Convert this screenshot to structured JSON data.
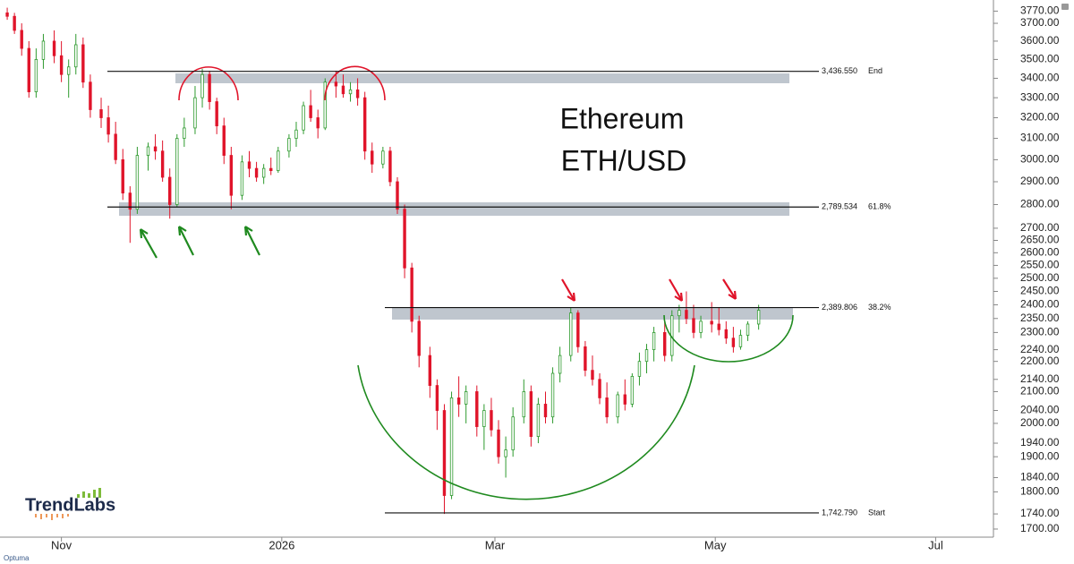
{
  "chart_data": {
    "type": "candlestick",
    "title": "Ethereum",
    "subtitle": "ETH/USD",
    "brand": "TrendLabs",
    "footer": "Optuma",
    "log_scale": true,
    "up_color": "#2e9a2e",
    "down_color": "#e0142a",
    "xlim": [
      -17,
      258
    ],
    "xticks": [
      {
        "value": 0,
        "label": "Nov"
      },
      {
        "value": 61,
        "label": "2026"
      },
      {
        "value": 120,
        "label": "Mar"
      },
      {
        "value": 181,
        "label": "May"
      },
      {
        "value": 242,
        "label": "Jul"
      }
    ],
    "ylim": [
      1679,
      3793
    ],
    "yticks": [
      {
        "value": 3770,
        "label": "3770.00"
      },
      {
        "value": 3700,
        "label": "3700.00"
      },
      {
        "value": 3600,
        "label": "3600.00"
      },
      {
        "value": 3500,
        "label": "3500.00"
      },
      {
        "value": 3400,
        "label": "3400.00"
      },
      {
        "value": 3300,
        "label": "3300.00"
      },
      {
        "value": 3200,
        "label": "3200.00"
      },
      {
        "value": 3100,
        "label": "3100.00"
      },
      {
        "value": 3000,
        "label": "3000.00"
      },
      {
        "value": 2900,
        "label": "2900.00"
      },
      {
        "value": 2800,
        "label": "2800.00"
      },
      {
        "value": 2700,
        "label": "2700.00"
      },
      {
        "value": 2650,
        "label": "2650.00"
      },
      {
        "value": 2600,
        "label": "2600.00"
      },
      {
        "value": 2550,
        "label": "2550.00"
      },
      {
        "value": 2500,
        "label": "2500.00"
      },
      {
        "value": 2450,
        "label": "2450.00"
      },
      {
        "value": 2400,
        "label": "2400.00"
      },
      {
        "value": 2350,
        "label": "2350.00"
      },
      {
        "value": 2300,
        "label": "2300.00"
      },
      {
        "value": 2240,
        "label": "2240.00"
      },
      {
        "value": 2200,
        "label": "2200.00"
      },
      {
        "value": 2140,
        "label": "2140.00"
      },
      {
        "value": 2100,
        "label": "2100.00"
      },
      {
        "value": 2040,
        "label": "2040.00"
      },
      {
        "value": 2000,
        "label": "2000.00"
      },
      {
        "value": 1940,
        "label": "1940.00"
      },
      {
        "value": 1900,
        "label": "1900.00"
      },
      {
        "value": 1840,
        "label": "1840.00"
      },
      {
        "value": 1800,
        "label": "1800.00"
      },
      {
        "value": 1740,
        "label": "1740.00"
      },
      {
        "value": 1700,
        "label": "1700.00"
      }
    ],
    "levels": [
      {
        "value": 3436.55,
        "price_label": "3,436.550",
        "label": "End"
      },
      {
        "value": 2789.534,
        "price_label": "2,789.534",
        "label": "61.8%"
      },
      {
        "value": 2389.806,
        "price_label": "2,389.806",
        "label": "38.2%"
      },
      {
        "value": 1742.79,
        "price_label": "1,742.790",
        "label": "Start"
      }
    ],
    "candles": {
      "x": [
        -15,
        -13,
        -11,
        -9,
        -7,
        -5,
        -2,
        0,
        2,
        4,
        6,
        8,
        11,
        13,
        15,
        17,
        19,
        21,
        24,
        26,
        28,
        30,
        32,
        34,
        37,
        39,
        41,
        43,
        45,
        47,
        50,
        52,
        54,
        56,
        58,
        60,
        63,
        65,
        67,
        69,
        71,
        73,
        76,
        78,
        80,
        82,
        84,
        86,
        89,
        91,
        93,
        95,
        97,
        99,
        102,
        104,
        106,
        108,
        110,
        112,
        115,
        117,
        119,
        121,
        123,
        125,
        128,
        130,
        132,
        134,
        136,
        138,
        141,
        143,
        145,
        147,
        149,
        151,
        154,
        156,
        158,
        160,
        162,
        164,
        167,
        169,
        171,
        173,
        175,
        177,
        180,
        182,
        184,
        186,
        188,
        190,
        193
      ],
      "open": [
        3760,
        3740,
        3660,
        3560,
        3330,
        3500,
        3600,
        3520,
        3420,
        3460,
        3580,
        3380,
        3240,
        3200,
        3120,
        3000,
        2850,
        2780,
        3020,
        3060,
        3040,
        2920,
        2800,
        3100,
        3150,
        3300,
        3420,
        3280,
        3160,
        3020,
        2840,
        2990,
        2960,
        2920,
        2960,
        2950,
        3040,
        3100,
        3140,
        3260,
        3200,
        3150,
        3380,
        3360,
        3320,
        3340,
        3300,
        3040,
        2980,
        3040,
        2900,
        2780,
        2540,
        2340,
        2220,
        2120,
        2040,
        1790,
        2080,
        2060,
        2100,
        1990,
        2040,
        1980,
        1900,
        1920,
        2020,
        2100,
        1960,
        2060,
        2020,
        2160,
        2220,
        2370,
        2250,
        2170,
        2140,
        2080,
        2020,
        2090,
        2060,
        2150,
        2200,
        2240,
        2300,
        2220,
        2360,
        2380,
        2350,
        2300,
        2340,
        2330,
        2310,
        2280,
        2250,
        2290,
        2330
      ],
      "high": [
        3790,
        3760,
        3700,
        3600,
        3560,
        3640,
        3660,
        3600,
        3500,
        3640,
        3620,
        3420,
        3300,
        3260,
        3180,
        3050,
        2880,
        3060,
        3080,
        3120,
        3090,
        2960,
        3120,
        3200,
        3360,
        3450,
        3440,
        3300,
        3200,
        3060,
        3020,
        3040,
        2990,
        2980,
        3010,
        3060,
        3120,
        3180,
        3280,
        3340,
        3240,
        3400,
        3440,
        3420,
        3380,
        3400,
        3330,
        3080,
        3060,
        3060,
        2920,
        2800,
        2560,
        2360,
        2250,
        2140,
        2060,
        2100,
        2150,
        2120,
        2120,
        2060,
        2080,
        2010,
        1960,
        2050,
        2140,
        2120,
        2080,
        2100,
        2180,
        2250,
        2390,
        2380,
        2270,
        2220,
        2160,
        2130,
        2100,
        2140,
        2160,
        2230,
        2260,
        2320,
        2340,
        2380,
        2400,
        2450,
        2400,
        2360,
        2410,
        2390,
        2340,
        2320,
        2310,
        2340,
        2400
      ],
      "low": [
        3720,
        3640,
        3520,
        3300,
        3300,
        3450,
        3480,
        3380,
        3300,
        3420,
        3350,
        3200,
        3150,
        3080,
        2980,
        2820,
        2640,
        2760,
        2950,
        3000,
        2900,
        2740,
        2790,
        3060,
        3120,
        3250,
        3240,
        3120,
        2980,
        2780,
        2820,
        2920,
        2900,
        2890,
        2930,
        2940,
        3010,
        3060,
        3120,
        3180,
        3100,
        3140,
        3300,
        3300,
        3280,
        3260,
        3000,
        2940,
        2960,
        2880,
        2760,
        2500,
        2300,
        2180,
        2080,
        1980,
        1740,
        1780,
        2020,
        2000,
        1960,
        1920,
        1960,
        1880,
        1840,
        1900,
        2000,
        1930,
        1940,
        2000,
        2000,
        2130,
        2200,
        2230,
        2150,
        2120,
        2060,
        2000,
        2000,
        2040,
        2050,
        2120,
        2160,
        2200,
        2200,
        2200,
        2300,
        2330,
        2280,
        2280,
        2300,
        2290,
        2260,
        2230,
        2240,
        2270,
        2310
      ],
      "close": [
        3740,
        3660,
        3560,
        3330,
        3500,
        3600,
        3520,
        3420,
        3460,
        3580,
        3380,
        3240,
        3200,
        3120,
        3000,
        2850,
        2780,
        3020,
        3060,
        3040,
        2920,
        2800,
        3100,
        3150,
        3300,
        3420,
        3280,
        3160,
        3020,
        2840,
        2990,
        2960,
        2920,
        2960,
        2950,
        3040,
        3100,
        3140,
        3260,
        3200,
        3150,
        3380,
        3360,
        3320,
        3340,
        3300,
        3040,
        2980,
        3040,
        2900,
        2780,
        2540,
        2340,
        2220,
        2120,
        2040,
        1790,
        2080,
        2060,
        2100,
        1990,
        2040,
        1980,
        1900,
        1920,
        2020,
        2100,
        1960,
        2060,
        2020,
        2160,
        2220,
        2370,
        2250,
        2170,
        2140,
        2080,
        2020,
        2090,
        2060,
        2150,
        2200,
        2240,
        2300,
        2220,
        2360,
        2380,
        2350,
        2300,
        2340,
        2330,
        2310,
        2280,
        2250,
        2290,
        2330,
        2380
      ]
    }
  }
}
